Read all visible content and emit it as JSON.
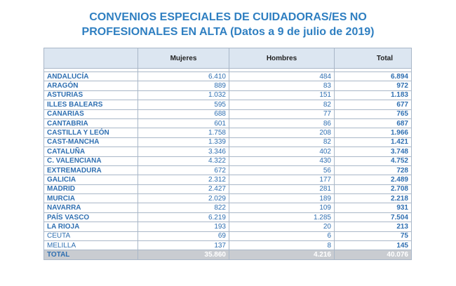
{
  "title": {
    "line1": "CONVENIOS ESPECIALES DE CUIDADORAS/ES NO",
    "line2": "PROFESIONALES EN ALTA (Datos a 9 de julio de 2019)"
  },
  "table": {
    "headers": [
      "",
      "Mujeres",
      "Hombres",
      "Total"
    ],
    "rows": [
      {
        "name": "ANDALUCÍA",
        "mujeres": "6.410",
        "hombres": "484",
        "total": "6.894"
      },
      {
        "name": "ARAGÓN",
        "mujeres": "889",
        "hombres": "83",
        "total": "972"
      },
      {
        "name": "ASTURIAS",
        "mujeres": "1.032",
        "hombres": "151",
        "total": "1.183"
      },
      {
        "name": "ILLES BALEARS",
        "mujeres": "595",
        "hombres": "82",
        "total": "677"
      },
      {
        "name": "CANARIAS",
        "mujeres": "688",
        "hombres": "77",
        "total": "765"
      },
      {
        "name": "CANTABRIA",
        "mujeres": "601",
        "hombres": "86",
        "total": "687"
      },
      {
        "name": "CASTILLA Y LEÓN",
        "mujeres": "1.758",
        "hombres": "208",
        "total": "1.966"
      },
      {
        "name": "CAST-MANCHA",
        "mujeres": "1.339",
        "hombres": "82",
        "total": "1.421"
      },
      {
        "name": "CATALUÑA",
        "mujeres": "3.346",
        "hombres": "402",
        "total": "3.748"
      },
      {
        "name": "C. VALENCIANA",
        "mujeres": "4.322",
        "hombres": "430",
        "total": "4.752"
      },
      {
        "name": "EXTREMADURA",
        "mujeres": "672",
        "hombres": "56",
        "total": "728"
      },
      {
        "name": "GALICIA",
        "mujeres": "2.312",
        "hombres": "177",
        "total": "2.489"
      },
      {
        "name": "MADRID",
        "mujeres": "2.427",
        "hombres": "281",
        "total": "2.708"
      },
      {
        "name": "MURCIA",
        "mujeres": "2.029",
        "hombres": "189",
        "total": "2.218"
      },
      {
        "name": "NAVARRA",
        "mujeres": "822",
        "hombres": "109",
        "total": "931"
      },
      {
        "name": "PAÍS VASCO",
        "mujeres": "6.219",
        "hombres": "1.285",
        "total": "7.504"
      },
      {
        "name": "LA RIOJA",
        "mujeres": "193",
        "hombres": "20",
        "total": "213"
      },
      {
        "name": "CEUTA",
        "mujeres": "69",
        "hombres": "6",
        "total": "75"
      },
      {
        "name": "MELILLA",
        "mujeres": "137",
        "hombres": "8",
        "total": "145"
      }
    ],
    "footer": {
      "name": "TOTAL",
      "mujeres": "35.860",
      "hombres": "4.216",
      "total": "40.076"
    }
  }
}
